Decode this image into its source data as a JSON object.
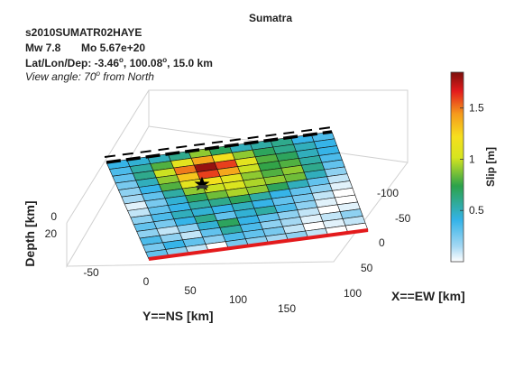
{
  "chart_data": {
    "type": "heatmap",
    "title": "Sumatra",
    "event_id": "s2010SUMATR02HAYE",
    "mw_label": "Mw 7.8",
    "mo_label": "Mo 5.67e+20",
    "latlondep_prefix": "Lat/Lon/Dep: -3.46",
    "latlondep_lon": ", 100.08",
    "latlondep_end": ", 15.0 km",
    "degree_mark": "o",
    "view_prefix": "View angle:  70",
    "view_suffix": " from North",
    "xlabel": "X==EW [km]",
    "ylabel": "Y==NS [km]",
    "zlabel": "Depth [km]",
    "x_ticks": [
      "-100",
      "-50",
      "0",
      "50",
      "100"
    ],
    "y_ticks": [
      "-50",
      "0",
      "50",
      "100",
      "150"
    ],
    "z_ticks": [
      "0",
      "20"
    ],
    "colorbar": {
      "label": "Slip [m]",
      "ticks": [
        "0.5",
        "1",
        "1.5"
      ],
      "tick_values": [
        0.5,
        1.0,
        1.5
      ],
      "range": [
        0,
        1.85
      ],
      "colormap": "jet"
    },
    "grid_rows": 14,
    "grid_cols": 11,
    "slip": [
      [
        0.4,
        0.45,
        0.5,
        0.6,
        0.9,
        0.7,
        0.5,
        0.55,
        0.6,
        0.4,
        0.35
      ],
      [
        0.35,
        0.55,
        0.8,
        1.1,
        1.4,
        1.2,
        0.9,
        0.7,
        0.6,
        0.5,
        0.4
      ],
      [
        0.3,
        0.6,
        1.0,
        1.5,
        1.8,
        1.6,
        1.1,
        0.8,
        0.7,
        0.5,
        0.4
      ],
      [
        0.25,
        0.5,
        0.9,
        1.3,
        1.6,
        1.4,
        1.0,
        0.75,
        0.8,
        0.55,
        0.35
      ],
      [
        0.2,
        0.4,
        0.8,
        1.1,
        1.2,
        1.1,
        0.9,
        0.8,
        0.9,
        0.6,
        0.3
      ],
      [
        0.15,
        0.3,
        0.55,
        0.9,
        1.0,
        1.05,
        0.95,
        0.9,
        0.85,
        0.5,
        0.2
      ],
      [
        0.05,
        0.25,
        0.45,
        0.7,
        0.85,
        0.95,
        0.9,
        0.7,
        0.5,
        0.3,
        0.1
      ],
      [
        0.1,
        0.3,
        0.4,
        0.55,
        0.6,
        0.7,
        0.55,
        0.4,
        0.3,
        0.2,
        0.05
      ],
      [
        0.2,
        0.35,
        0.5,
        0.45,
        0.4,
        0.5,
        0.4,
        0.3,
        0.25,
        0.1,
        0.0
      ],
      [
        0.3,
        0.25,
        0.4,
        0.6,
        0.3,
        0.45,
        0.55,
        0.35,
        0.2,
        0.05,
        0.0
      ],
      [
        0.2,
        0.1,
        0.2,
        0.45,
        0.7,
        0.4,
        0.3,
        0.2,
        0.1,
        0.0,
        0.05
      ],
      [
        0.35,
        0.2,
        0.1,
        0.3,
        0.55,
        0.35,
        0.2,
        0.15,
        0.05,
        0.1,
        0.2
      ],
      [
        0.25,
        0.4,
        0.3,
        0.2,
        0.35,
        0.3,
        0.25,
        0.1,
        0.0,
        0.05,
        0.1
      ],
      [
        0.3,
        0.2,
        0.1,
        0.0,
        0.25,
        0.2,
        0.15,
        0.2,
        0.1,
        0.0,
        0.0
      ]
    ]
  }
}
